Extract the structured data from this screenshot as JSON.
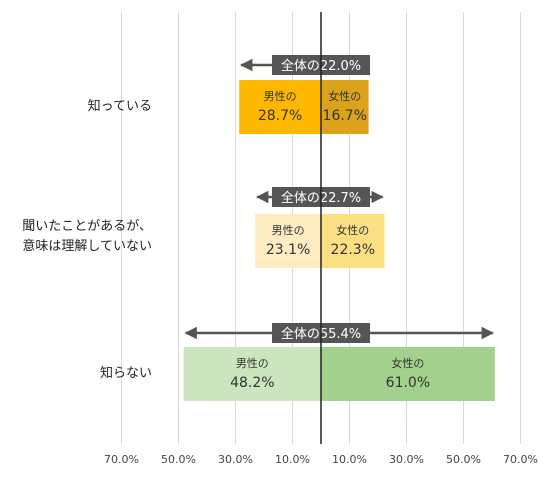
{
  "chart_data": {
    "type": "bar",
    "orientation": "horizontal-diverging",
    "categories": [
      "知っている",
      "聞いたことがあるが、\n意味は理解していない",
      "知らない"
    ],
    "series": [
      {
        "name": "男性の",
        "direction": "left",
        "values": [
          28.7,
          23.1,
          48.2
        ],
        "colors": [
          "#FFB800",
          "#FDEBC2",
          "#CDE5BE"
        ]
      },
      {
        "name": "女性の",
        "direction": "right",
        "values": [
          16.7,
          22.3,
          61.0
        ],
        "colors": [
          "#DDA21C",
          "#FCDF83",
          "#A2D08D"
        ]
      }
    ],
    "totals": {
      "label_prefix": "全体の",
      "values": [
        22.0,
        22.7,
        55.4
      ]
    },
    "value_suffix": "%",
    "x_tick_labels": [
      "70.0%",
      "50.0%",
      "30.0%",
      "10.0%",
      "10.0%",
      "30.0%",
      "50.0%",
      "70.0%"
    ],
    "x_ticks_signed": [
      -70,
      -50,
      -30,
      -10,
      10,
      30,
      50,
      70
    ],
    "xlim": [
      -80,
      80
    ],
    "grid": true,
    "legend": "none"
  }
}
